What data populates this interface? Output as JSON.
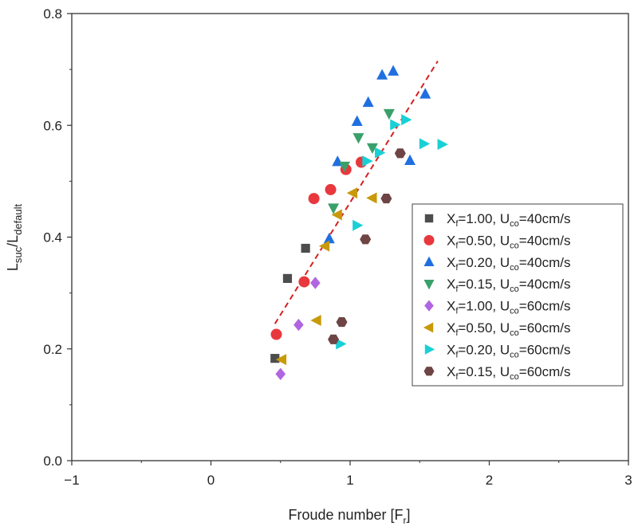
{
  "chart_data": {
    "type": "scatter",
    "title": "",
    "xlabel": {
      "main": "Froude number [F",
      "sub": "r",
      "end": "]"
    },
    "ylabel": {
      "a": "L",
      "a_sub": "suc",
      "slash": "/L",
      "b_sub": "default"
    },
    "xlim": [
      -1,
      3
    ],
    "ylim": [
      0,
      0.8
    ],
    "xticks": [
      -1,
      0,
      1,
      2,
      3
    ],
    "xtick_labels": [
      "−1",
      "0",
      "1",
      "2",
      "3"
    ],
    "yticks": [
      0,
      0.2,
      0.4,
      0.6,
      0.8
    ],
    "ytick_labels": [
      "0.0",
      "0.2",
      "0.4",
      "0.6",
      "0.8"
    ],
    "grid": false,
    "legend_position": "right",
    "series": [
      {
        "name": "Xf=1.00, Uco=40cm/s",
        "label": {
          "X": "X",
          "xsub": "f",
          "xval": "=1.00, U",
          "usub": "co",
          "uval": "=40cm/s"
        },
        "marker": "square",
        "color": "#4d4d4d",
        "points": [
          [
            0.46,
            0.183
          ],
          [
            0.55,
            0.326
          ],
          [
            0.68,
            0.38
          ]
        ]
      },
      {
        "name": "Xf=0.50, Uco=40cm/s",
        "label": {
          "X": "X",
          "xsub": "f",
          "xval": "=0.50, U",
          "usub": "co",
          "uval": "=40cm/s"
        },
        "marker": "circle",
        "color": "#e8383d",
        "points": [
          [
            0.47,
            0.226
          ],
          [
            0.67,
            0.32
          ],
          [
            0.74,
            0.469
          ],
          [
            0.86,
            0.485
          ],
          [
            0.97,
            0.521
          ],
          [
            1.08,
            0.534
          ]
        ]
      },
      {
        "name": "Xf=0.20, Uco=40cm/s",
        "label": {
          "X": "X",
          "xsub": "f",
          "xval": "=0.20, U",
          "usub": "co",
          "uval": "=40cm/s"
        },
        "marker": "triangle-up",
        "color": "#1f6fe0",
        "points": [
          [
            0.85,
            0.397
          ],
          [
            0.91,
            0.535
          ],
          [
            1.05,
            0.607
          ],
          [
            1.13,
            0.641
          ],
          [
            1.23,
            0.69
          ],
          [
            1.31,
            0.697
          ],
          [
            1.43,
            0.537
          ],
          [
            1.54,
            0.656
          ]
        ]
      },
      {
        "name": "Xf=0.15, Uco=40cm/s",
        "label": {
          "X": "X",
          "xsub": "f",
          "xval": "=0.15, U",
          "usub": "co",
          "uval": "=40cm/s"
        },
        "marker": "triangle-down",
        "color": "#3aa06a",
        "points": [
          [
            0.88,
            0.452
          ],
          [
            0.96,
            0.527
          ],
          [
            1.06,
            0.578
          ],
          [
            1.16,
            0.56
          ],
          [
            1.28,
            0.621
          ]
        ]
      },
      {
        "name": "Xf=1.00, Uco=60cm/s",
        "label": {
          "X": "X",
          "xsub": "f",
          "xval": "=1.00, U",
          "usub": "co",
          "uval": "=60cm/s"
        },
        "marker": "diamond",
        "color": "#b066e0",
        "points": [
          [
            0.5,
            0.155
          ],
          [
            0.63,
            0.243
          ],
          [
            0.75,
            0.318
          ]
        ]
      },
      {
        "name": "Xf=0.50, Uco=60cm/s",
        "label": {
          "X": "X",
          "xsub": "f",
          "xval": "=0.50, U",
          "usub": "co",
          "uval": "=60cm/s"
        },
        "marker": "triangle-left",
        "color": "#c89a0a",
        "points": [
          [
            0.51,
            0.181
          ],
          [
            0.76,
            0.251
          ],
          [
            0.82,
            0.384
          ],
          [
            0.91,
            0.44
          ],
          [
            1.02,
            0.479
          ],
          [
            1.16,
            0.47
          ]
        ]
      },
      {
        "name": "Xf=0.20, Uco=60cm/s",
        "label": {
          "X": "X",
          "xsub": "f",
          "xval": "=0.20, U",
          "usub": "co",
          "uval": "=60cm/s"
        },
        "marker": "triangle-right",
        "color": "#19d0d6",
        "points": [
          [
            0.93,
            0.209
          ],
          [
            1.05,
            0.421
          ],
          [
            1.12,
            0.536
          ],
          [
            1.21,
            0.551
          ],
          [
            1.32,
            0.601
          ],
          [
            1.4,
            0.61
          ],
          [
            1.53,
            0.567
          ],
          [
            1.66,
            0.566
          ]
        ]
      },
      {
        "name": "Xf=0.15, Uco=60cm/s",
        "label": {
          "X": "X",
          "xsub": "f",
          "xval": "=0.15, U",
          "usub": "co",
          "uval": "=60cm/s"
        },
        "marker": "hexagon",
        "color": "#6e4444",
        "points": [
          [
            0.88,
            0.217
          ],
          [
            0.94,
            0.248
          ],
          [
            1.11,
            0.396
          ],
          [
            1.26,
            0.469
          ],
          [
            1.36,
            0.55
          ]
        ]
      }
    ],
    "fit_line": {
      "style": "dashed",
      "color": "#d62020",
      "from": [
        0.46,
        0.245
      ],
      "to": [
        1.63,
        0.715
      ]
    }
  }
}
